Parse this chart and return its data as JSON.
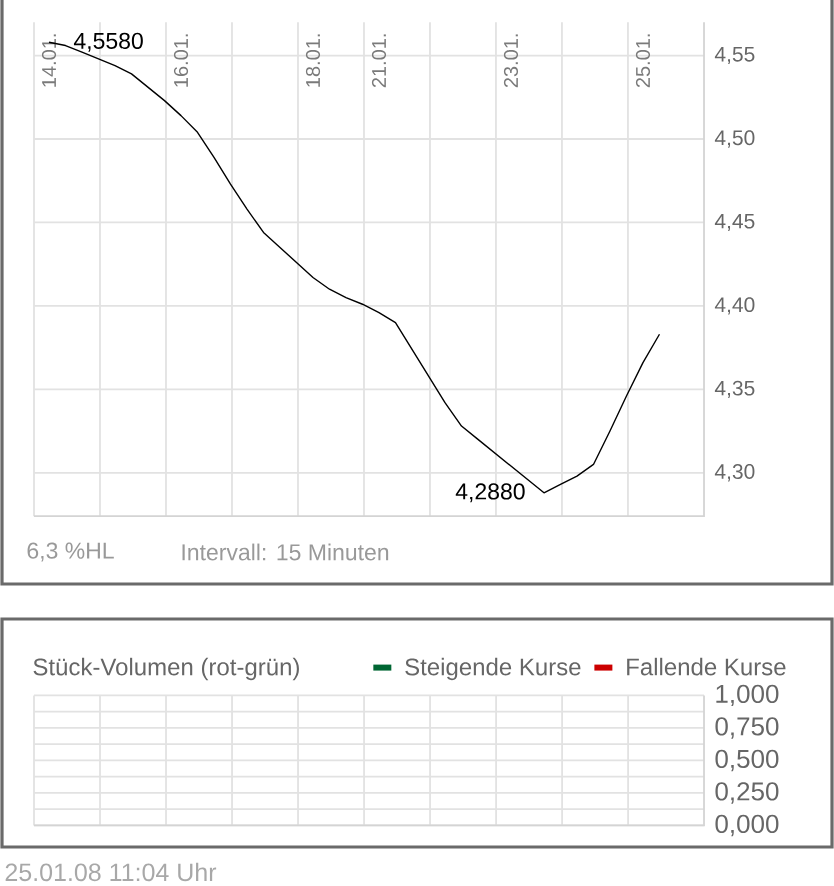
{
  "chart_data": [
    {
      "type": "line",
      "categories": [
        "14.01.",
        null,
        null,
        null,
        null,
        null,
        null,
        null,
        "16.01.",
        null,
        null,
        null,
        null,
        null,
        null,
        null,
        "18.01.",
        null,
        null,
        null,
        "21.01.",
        null,
        null,
        null,
        null,
        null,
        null,
        null,
        "23.01.",
        null,
        null,
        null,
        null,
        null,
        null,
        null,
        "25.01.",
        null,
        null,
        null
      ],
      "values": [
        4.558,
        4.556,
        4.552,
        4.548,
        4.544,
        4.539,
        4.531,
        4.523,
        4.514,
        4.504,
        4.489,
        4.473,
        4.458,
        4.444,
        4.435,
        4.426,
        4.417,
        4.41,
        4.405,
        4.401,
        4.396,
        4.39,
        4.374,
        4.358,
        4.342,
        4.328,
        4.32,
        4.312,
        4.304,
        4.296,
        4.288,
        4.293,
        4.298,
        4.305,
        4.325,
        4.346,
        4.366,
        4.383,
        null,
        null
      ],
      "value_labels": [
        "4,5580",
        null,
        null,
        null,
        null,
        null,
        null,
        null,
        null,
        null,
        null,
        null,
        null,
        null,
        null,
        null,
        null,
        null,
        null,
        null,
        null,
        null,
        null,
        null,
        null,
        null,
        null,
        null,
        null,
        null,
        "4,2880",
        null,
        null,
        null,
        null,
        null,
        null,
        null,
        null,
        null
      ],
      "color": "#000000",
      "ylim": [
        4.274,
        4.57
      ],
      "yticks": [
        {
          "value": 4.3,
          "label": "4,30"
        },
        {
          "value": 4.35,
          "label": "4,35"
        },
        {
          "value": 4.4,
          "label": "4,40"
        },
        {
          "value": 4.45,
          "label": "4,45"
        },
        {
          "value": 4.5,
          "label": "4,50"
        },
        {
          "value": 4.55,
          "label": "4,55"
        }
      ],
      "grid": true,
      "annotations": [
        "6,3 %HL",
        "Intervall: 15 Minuten"
      ]
    },
    {
      "type": "bar",
      "title": "Stück-Volumen (rot-grün)",
      "categories": [
        null,
        null,
        null,
        null,
        null,
        null,
        null,
        null,
        null,
        null
      ],
      "series": [
        {
          "name": "Steigende Kurse",
          "color": "#006633",
          "values": [
            null,
            null,
            null,
            null,
            null,
            null,
            null,
            null,
            null,
            null
          ]
        },
        {
          "name": "Fallende Kurse",
          "color": "#cc0000",
          "values": [
            null,
            null,
            null,
            null,
            null,
            null,
            null,
            null,
            null,
            null
          ]
        }
      ],
      "ylim": [
        0,
        1
      ],
      "yticks": [
        {
          "value": 0,
          "label": "0,000"
        },
        {
          "value": 0.125,
          "label": null
        },
        {
          "value": 0.25,
          "label": "0,250"
        },
        {
          "value": 0.375,
          "label": null
        },
        {
          "value": 0.5,
          "label": "0,500"
        },
        {
          "value": 0.625,
          "label": null
        },
        {
          "value": 0.75,
          "label": "0,750"
        },
        {
          "value": 0.875,
          "label": null
        },
        {
          "value": 1,
          "label": "1,000"
        }
      ],
      "tick_labels": "y",
      "grid": true,
      "legend": "top right",
      "annotations": [
        "25.01.08 11:04 Uhr"
      ]
    }
  ]
}
